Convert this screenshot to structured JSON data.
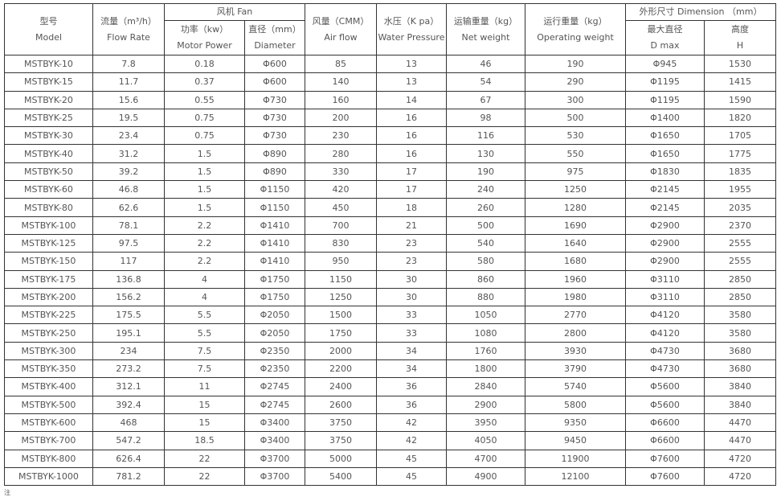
{
  "headers": {
    "model": [
      "型号",
      "Model"
    ],
    "flow": [
      "流量（m³/h）",
      "Flow Rate"
    ],
    "fan": "风机 Fan",
    "power": [
      "功率（kw）",
      "Motor Power"
    ],
    "diameter": [
      "直径（mm）",
      "Diameter"
    ],
    "air": [
      "风量（CMM）",
      "Air flow"
    ],
    "water": [
      "水压（K pa）",
      "Water Pressure"
    ],
    "net": [
      "运输重量（kg）",
      "Net weight"
    ],
    "operating": [
      "运行重量（kg）",
      "Operating weight"
    ],
    "dimension": "外形尺寸 Dimension （mm）",
    "dmax": [
      "最大直径",
      "D max"
    ],
    "height": [
      "高度",
      "H"
    ]
  },
  "rows": [
    [
      "MSTBYK-10",
      "7.8",
      "0.18",
      "Φ600",
      "85",
      "13",
      "46",
      "190",
      "Φ945",
      "1530"
    ],
    [
      "MSTBYK-15",
      "11.7",
      "0.37",
      "Φ600",
      "140",
      "13",
      "54",
      "290",
      "Φ1195",
      "1415"
    ],
    [
      "MSTBYK-20",
      "15.6",
      "0.55",
      "Φ730",
      "160",
      "14",
      "67",
      "300",
      "Φ1195",
      "1590"
    ],
    [
      "MSTBYK-25",
      "19.5",
      "0.75",
      "Φ730",
      "200",
      "16",
      "98",
      "500",
      "Φ1400",
      "1820"
    ],
    [
      "MSTBYK-30",
      "23.4",
      "0.75",
      "Φ730",
      "230",
      "16",
      "116",
      "530",
      "Φ1650",
      "1705"
    ],
    [
      "MSTBYK-40",
      "31.2",
      "1.5",
      "Φ890",
      "280",
      "16",
      "130",
      "550",
      "Φ1650",
      "1775"
    ],
    [
      "MSTBYK-50",
      "39.2",
      "1.5",
      "Φ890",
      "330",
      "17",
      "190",
      "975",
      "Φ1830",
      "1835"
    ],
    [
      "MSTBYK-60",
      "46.8",
      "1.5",
      "Φ1150",
      "420",
      "17",
      "240",
      "1250",
      "Φ2145",
      "1955"
    ],
    [
      "MSTBYK-80",
      "62.6",
      "1.5",
      "Φ1150",
      "450",
      "18",
      "260",
      "1280",
      "Φ2145",
      "2035"
    ],
    [
      "MSTBYK-100",
      "78.1",
      "2.2",
      "Φ1410",
      "700",
      "21",
      "500",
      "1690",
      "Φ2900",
      "2370"
    ],
    [
      "MSTBYK-125",
      "97.5",
      "2.2",
      "Φ1410",
      "830",
      "23",
      "540",
      "1640",
      "Φ2900",
      "2555"
    ],
    [
      "MSTBYK-150",
      "117",
      "2.2",
      "Φ1410",
      "950",
      "23",
      "580",
      "1680",
      "Φ2900",
      "2555"
    ],
    [
      "MSTBYK-175",
      "136.8",
      "4",
      "Φ1750",
      "1150",
      "30",
      "860",
      "1960",
      "Φ3110",
      "2850"
    ],
    [
      "MSTBYK-200",
      "156.2",
      "4",
      "Φ1750",
      "1250",
      "30",
      "880",
      "1980",
      "Φ3110",
      "2850"
    ],
    [
      "MSTBYK-225",
      "175.5",
      "5.5",
      "Φ2050",
      "1500",
      "33",
      "1050",
      "2770",
      "Φ4120",
      "3580"
    ],
    [
      "MSTBYK-250",
      "195.1",
      "5.5",
      "Φ2050",
      "1750",
      "33",
      "1080",
      "2800",
      "Φ4120",
      "3580"
    ],
    [
      "MSTBYK-300",
      "234",
      "7.5",
      "Φ2350",
      "2000",
      "34",
      "1760",
      "3930",
      "Φ4730",
      "3680"
    ],
    [
      "MSTBYK-350",
      "273.2",
      "7.5",
      "Φ2350",
      "2200",
      "34",
      "1800",
      "3790",
      "Φ4730",
      "3680"
    ],
    [
      "MSTBYK-400",
      "312.1",
      "11",
      "Φ2745",
      "2400",
      "36",
      "2840",
      "5740",
      "Φ5600",
      "3840"
    ],
    [
      "MSTBYK-500",
      "392.4",
      "15",
      "Φ2745",
      "2600",
      "36",
      "2900",
      "5800",
      "Φ5600",
      "3840"
    ],
    [
      "MSTBYK-600",
      "468",
      "15",
      "Φ3400",
      "3750",
      "42",
      "3950",
      "9350",
      "Φ6600",
      "4470"
    ],
    [
      "MSTBYK-700",
      "547.2",
      "18.5",
      "Φ3400",
      "3750",
      "42",
      "4050",
      "9450",
      "Φ6600",
      "4470"
    ],
    [
      "MSTBYK-800",
      "626.4",
      "22",
      "Φ3700",
      "5000",
      "45",
      "4700",
      "11900",
      "Φ7600",
      "4720"
    ],
    [
      "MSTBYK-1000",
      "781.2",
      "22",
      "Φ3700",
      "5400",
      "45",
      "4900",
      "12100",
      "Φ7600",
      "4720"
    ]
  ],
  "note": "注"
}
